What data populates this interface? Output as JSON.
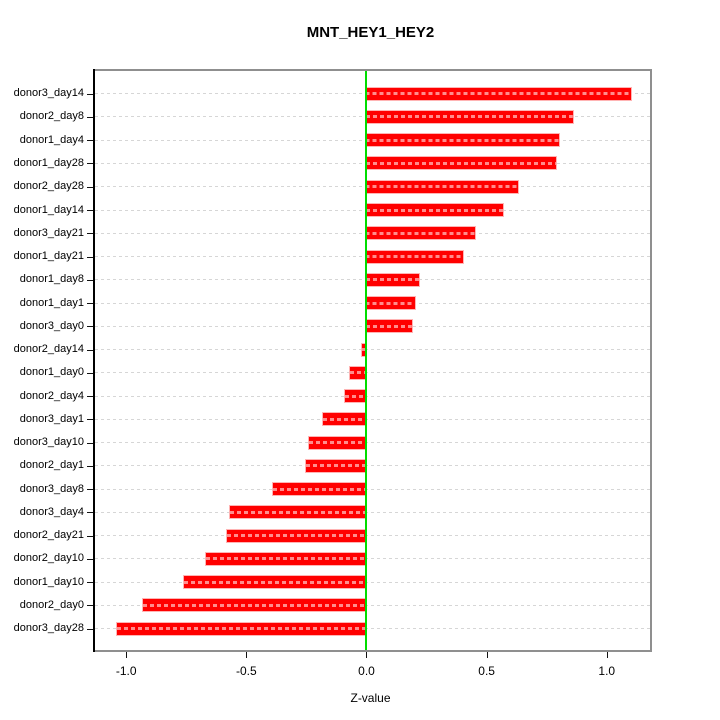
{
  "title": "MNT_HEY1_HEY2",
  "x_axis": {
    "label": "Z-value",
    "ticks": [
      {
        "value": -1.0,
        "label": "-1.0"
      },
      {
        "value": -0.5,
        "label": "-0.5"
      },
      {
        "value": 0.0,
        "label": "0.0"
      },
      {
        "value": 0.5,
        "label": "0.5"
      },
      {
        "value": 1.0,
        "label": "1.0"
      }
    ]
  },
  "colors": {
    "bar": "#ff0000",
    "bar_halo": "#ffb4b4",
    "zero_line": "#00dd00",
    "gridline": "#d6d6d6",
    "box_border": "#8f8f8f",
    "axis": "#000000",
    "background": "#ffffff"
  },
  "chart_data": {
    "type": "bar",
    "orientation": "horizontal",
    "title": "MNT_HEY1_HEY2",
    "xlabel": "Z-value",
    "ylabel": "",
    "xlim": [
      -1.13,
      1.18
    ],
    "grid": true,
    "grid_style": "dashed",
    "zero_reference_line": 0.0,
    "legend": "none",
    "categories": [
      "donor3_day14",
      "donor2_day8",
      "donor1_day4",
      "donor1_day28",
      "donor2_day28",
      "donor1_day14",
      "donor3_day21",
      "donor1_day21",
      "donor1_day8",
      "donor1_day1",
      "donor3_day0",
      "donor2_day14",
      "donor1_day0",
      "donor2_day4",
      "donor3_day1",
      "donor3_day10",
      "donor2_day1",
      "donor3_day8",
      "donor3_day4",
      "donor2_day21",
      "donor2_day10",
      "donor1_day10",
      "donor2_day0",
      "donor3_day28"
    ],
    "values": [
      1.1,
      0.86,
      0.8,
      0.79,
      0.63,
      0.57,
      0.45,
      0.4,
      0.22,
      0.2,
      0.19,
      -0.02,
      -0.07,
      -0.09,
      -0.18,
      -0.24,
      -0.25,
      -0.39,
      -0.57,
      -0.58,
      -0.67,
      -0.76,
      -0.93,
      -1.04
    ]
  }
}
